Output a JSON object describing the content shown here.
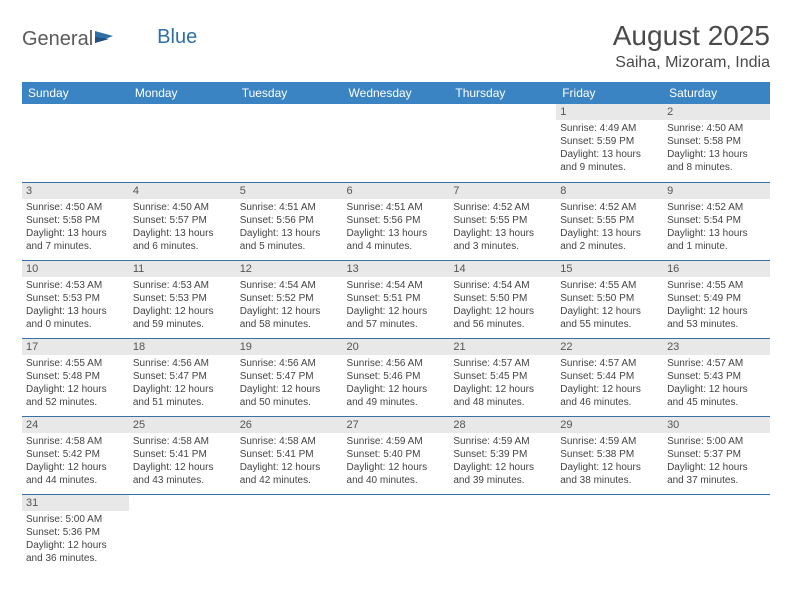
{
  "logo": {
    "part1": "General",
    "part2": "Blue"
  },
  "title": "August 2025",
  "location": "Saiha, Mizoram, India",
  "colors": {
    "header_bg": "#3b84c4",
    "header_text": "#ffffff",
    "daynum_bg": "#e8e8e8",
    "row_border": "#3b6fa8",
    "body_text": "#444444",
    "title_text": "#4a4a4a",
    "logo_gray": "#5a5a5a",
    "logo_blue": "#2f6fa8"
  },
  "day_headers": [
    "Sunday",
    "Monday",
    "Tuesday",
    "Wednesday",
    "Thursday",
    "Friday",
    "Saturday"
  ],
  "weeks": [
    [
      {
        "n": "",
        "sr": "",
        "ss": "",
        "dl": ""
      },
      {
        "n": "",
        "sr": "",
        "ss": "",
        "dl": ""
      },
      {
        "n": "",
        "sr": "",
        "ss": "",
        "dl": ""
      },
      {
        "n": "",
        "sr": "",
        "ss": "",
        "dl": ""
      },
      {
        "n": "",
        "sr": "",
        "ss": "",
        "dl": ""
      },
      {
        "n": "1",
        "sr": "Sunrise: 4:49 AM",
        "ss": "Sunset: 5:59 PM",
        "dl": "Daylight: 13 hours and 9 minutes."
      },
      {
        "n": "2",
        "sr": "Sunrise: 4:50 AM",
        "ss": "Sunset: 5:58 PM",
        "dl": "Daylight: 13 hours and 8 minutes."
      }
    ],
    [
      {
        "n": "3",
        "sr": "Sunrise: 4:50 AM",
        "ss": "Sunset: 5:58 PM",
        "dl": "Daylight: 13 hours and 7 minutes."
      },
      {
        "n": "4",
        "sr": "Sunrise: 4:50 AM",
        "ss": "Sunset: 5:57 PM",
        "dl": "Daylight: 13 hours and 6 minutes."
      },
      {
        "n": "5",
        "sr": "Sunrise: 4:51 AM",
        "ss": "Sunset: 5:56 PM",
        "dl": "Daylight: 13 hours and 5 minutes."
      },
      {
        "n": "6",
        "sr": "Sunrise: 4:51 AM",
        "ss": "Sunset: 5:56 PM",
        "dl": "Daylight: 13 hours and 4 minutes."
      },
      {
        "n": "7",
        "sr": "Sunrise: 4:52 AM",
        "ss": "Sunset: 5:55 PM",
        "dl": "Daylight: 13 hours and 3 minutes."
      },
      {
        "n": "8",
        "sr": "Sunrise: 4:52 AM",
        "ss": "Sunset: 5:55 PM",
        "dl": "Daylight: 13 hours and 2 minutes."
      },
      {
        "n": "9",
        "sr": "Sunrise: 4:52 AM",
        "ss": "Sunset: 5:54 PM",
        "dl": "Daylight: 13 hours and 1 minute."
      }
    ],
    [
      {
        "n": "10",
        "sr": "Sunrise: 4:53 AM",
        "ss": "Sunset: 5:53 PM",
        "dl": "Daylight: 13 hours and 0 minutes."
      },
      {
        "n": "11",
        "sr": "Sunrise: 4:53 AM",
        "ss": "Sunset: 5:53 PM",
        "dl": "Daylight: 12 hours and 59 minutes."
      },
      {
        "n": "12",
        "sr": "Sunrise: 4:54 AM",
        "ss": "Sunset: 5:52 PM",
        "dl": "Daylight: 12 hours and 58 minutes."
      },
      {
        "n": "13",
        "sr": "Sunrise: 4:54 AM",
        "ss": "Sunset: 5:51 PM",
        "dl": "Daylight: 12 hours and 57 minutes."
      },
      {
        "n": "14",
        "sr": "Sunrise: 4:54 AM",
        "ss": "Sunset: 5:50 PM",
        "dl": "Daylight: 12 hours and 56 minutes."
      },
      {
        "n": "15",
        "sr": "Sunrise: 4:55 AM",
        "ss": "Sunset: 5:50 PM",
        "dl": "Daylight: 12 hours and 55 minutes."
      },
      {
        "n": "16",
        "sr": "Sunrise: 4:55 AM",
        "ss": "Sunset: 5:49 PM",
        "dl": "Daylight: 12 hours and 53 minutes."
      }
    ],
    [
      {
        "n": "17",
        "sr": "Sunrise: 4:55 AM",
        "ss": "Sunset: 5:48 PM",
        "dl": "Daylight: 12 hours and 52 minutes."
      },
      {
        "n": "18",
        "sr": "Sunrise: 4:56 AM",
        "ss": "Sunset: 5:47 PM",
        "dl": "Daylight: 12 hours and 51 minutes."
      },
      {
        "n": "19",
        "sr": "Sunrise: 4:56 AM",
        "ss": "Sunset: 5:47 PM",
        "dl": "Daylight: 12 hours and 50 minutes."
      },
      {
        "n": "20",
        "sr": "Sunrise: 4:56 AM",
        "ss": "Sunset: 5:46 PM",
        "dl": "Daylight: 12 hours and 49 minutes."
      },
      {
        "n": "21",
        "sr": "Sunrise: 4:57 AM",
        "ss": "Sunset: 5:45 PM",
        "dl": "Daylight: 12 hours and 48 minutes."
      },
      {
        "n": "22",
        "sr": "Sunrise: 4:57 AM",
        "ss": "Sunset: 5:44 PM",
        "dl": "Daylight: 12 hours and 46 minutes."
      },
      {
        "n": "23",
        "sr": "Sunrise: 4:57 AM",
        "ss": "Sunset: 5:43 PM",
        "dl": "Daylight: 12 hours and 45 minutes."
      }
    ],
    [
      {
        "n": "24",
        "sr": "Sunrise: 4:58 AM",
        "ss": "Sunset: 5:42 PM",
        "dl": "Daylight: 12 hours and 44 minutes."
      },
      {
        "n": "25",
        "sr": "Sunrise: 4:58 AM",
        "ss": "Sunset: 5:41 PM",
        "dl": "Daylight: 12 hours and 43 minutes."
      },
      {
        "n": "26",
        "sr": "Sunrise: 4:58 AM",
        "ss": "Sunset: 5:41 PM",
        "dl": "Daylight: 12 hours and 42 minutes."
      },
      {
        "n": "27",
        "sr": "Sunrise: 4:59 AM",
        "ss": "Sunset: 5:40 PM",
        "dl": "Daylight: 12 hours and 40 minutes."
      },
      {
        "n": "28",
        "sr": "Sunrise: 4:59 AM",
        "ss": "Sunset: 5:39 PM",
        "dl": "Daylight: 12 hours and 39 minutes."
      },
      {
        "n": "29",
        "sr": "Sunrise: 4:59 AM",
        "ss": "Sunset: 5:38 PM",
        "dl": "Daylight: 12 hours and 38 minutes."
      },
      {
        "n": "30",
        "sr": "Sunrise: 5:00 AM",
        "ss": "Sunset: 5:37 PM",
        "dl": "Daylight: 12 hours and 37 minutes."
      }
    ],
    [
      {
        "n": "31",
        "sr": "Sunrise: 5:00 AM",
        "ss": "Sunset: 5:36 PM",
        "dl": "Daylight: 12 hours and 36 minutes."
      },
      {
        "n": "",
        "sr": "",
        "ss": "",
        "dl": ""
      },
      {
        "n": "",
        "sr": "",
        "ss": "",
        "dl": ""
      },
      {
        "n": "",
        "sr": "",
        "ss": "",
        "dl": ""
      },
      {
        "n": "",
        "sr": "",
        "ss": "",
        "dl": ""
      },
      {
        "n": "",
        "sr": "",
        "ss": "",
        "dl": ""
      },
      {
        "n": "",
        "sr": "",
        "ss": "",
        "dl": ""
      }
    ]
  ]
}
